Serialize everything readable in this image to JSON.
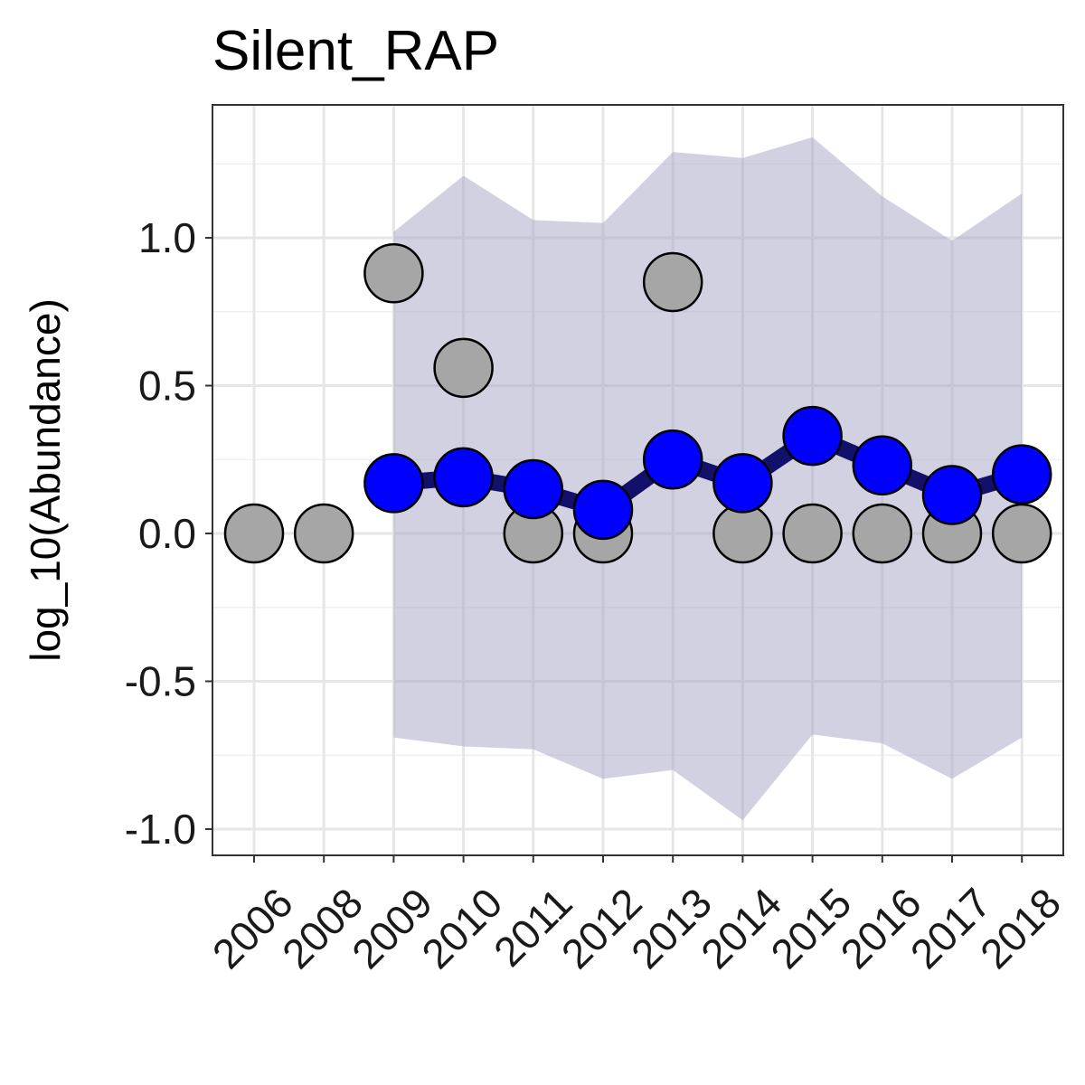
{
  "chart_data": {
    "type": "line",
    "title": "Silent_RAP",
    "xlabel": "",
    "ylabel": "log_10(Abundance)",
    "categories": [
      "2006",
      "2008",
      "2009",
      "2010",
      "2011",
      "2012",
      "2013",
      "2014",
      "2015",
      "2016",
      "2017",
      "2018"
    ],
    "ylim": [
      -1.08,
      1.45
    ],
    "yticks": [
      "1.0",
      "0.5",
      "0.0",
      "-0.5",
      "-1.0"
    ],
    "ytick_values": [
      1.0,
      0.5,
      0.0,
      -0.5,
      -1.0
    ],
    "grid": true,
    "series": [
      {
        "kind": "ribbon",
        "color": "#a3a3c6",
        "x": [
          "2009",
          "2010",
          "2011",
          "2012",
          "2013",
          "2014",
          "2015",
          "2016",
          "2017",
          "2018"
        ],
        "upper": [
          1.02,
          1.21,
          1.06,
          1.05,
          1.29,
          1.27,
          1.34,
          1.14,
          0.99,
          1.15
        ],
        "lower": [
          -0.69,
          -0.72,
          -0.73,
          -0.83,
          -0.8,
          -0.97,
          -0.68,
          -0.71,
          -0.83,
          -0.69
        ]
      },
      {
        "kind": "observed-points",
        "color": "#a6a6a6",
        "x": [
          "2006",
          "2008",
          "2009",
          "2010",
          "2011",
          "2012",
          "2013",
          "2014",
          "2015",
          "2016",
          "2017",
          "2018"
        ],
        "values": [
          0.0,
          0.0,
          0.88,
          0.56,
          0.0,
          0.0,
          0.85,
          0.0,
          0.0,
          0.0,
          0.0,
          0.0
        ]
      },
      {
        "kind": "estimate-line",
        "color": "#0000ff",
        "line_color": "#12106b",
        "x": [
          "2009",
          "2010",
          "2011",
          "2012",
          "2013",
          "2014",
          "2015",
          "2016",
          "2017",
          "2018"
        ],
        "values": [
          0.17,
          0.19,
          0.15,
          0.08,
          0.25,
          0.17,
          0.33,
          0.23,
          0.13,
          0.2
        ]
      }
    ]
  }
}
